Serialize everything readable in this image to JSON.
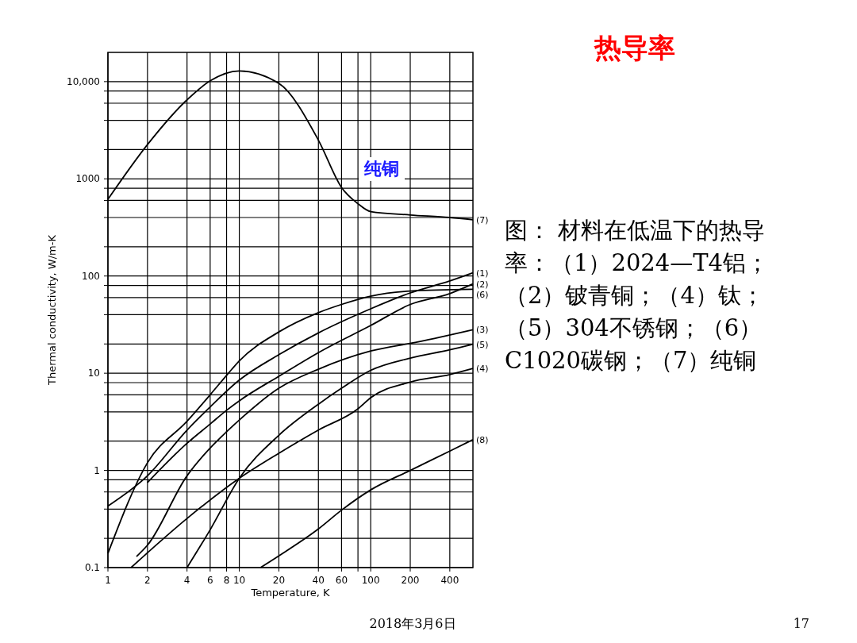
{
  "chart_data": {
    "type": "line",
    "title": "热导率",
    "xlabel": "Temperature, K",
    "ylabel": "Thermal conductivity, W/m-K",
    "log": "xy",
    "grid": true,
    "xlim": [
      1,
      600
    ],
    "ylim": [
      0.1,
      20000
    ],
    "xticks": [
      1,
      2,
      4,
      6,
      8,
      10,
      20,
      40,
      60,
      {
        "value": 80,
        "label": null
      },
      100,
      200,
      400
    ],
    "yticks": [
      0.1,
      {
        "value": 0.2,
        "label": null
      },
      {
        "value": 0.4,
        "label": null
      },
      {
        "value": 0.6,
        "label": null
      },
      {
        "value": 0.8,
        "label": null
      },
      1,
      {
        "value": 2,
        "label": null
      },
      {
        "value": 4,
        "label": null
      },
      {
        "value": 6,
        "label": null
      },
      {
        "value": 8,
        "label": null
      },
      10,
      {
        "value": 20,
        "label": null
      },
      {
        "value": 40,
        "label": null
      },
      {
        "value": 60,
        "label": null
      },
      {
        "value": 80,
        "label": null
      },
      100,
      {
        "value": 200,
        "label": null
      },
      {
        "value": 400,
        "label": null
      },
      {
        "value": 600,
        "label": null
      },
      {
        "value": 800,
        "label": null
      },
      1000,
      {
        "value": 2000,
        "label": null
      },
      {
        "value": 4000,
        "label": null
      },
      {
        "value": 6000,
        "label": null
      },
      {
        "value": 8000,
        "label": null
      },
      {
        "value": 10000,
        "label": "10,000"
      }
    ],
    "series": [
      {
        "name": "(7)",
        "color": "#000000",
        "x": [
          1,
          2,
          4,
          6,
          10,
          20,
          40,
          60,
          80,
          100,
          200,
          400,
          600
        ],
        "values": [
          615,
          2250,
          6500,
          10200,
          12900,
          9600,
          2500,
          815,
          555,
          460,
          425,
          400,
          380
        ]
      },
      {
        "name": "(1)",
        "color": "#000000",
        "x": [
          1,
          2,
          4,
          6,
          10,
          20,
          40,
          100,
          200,
          400,
          600
        ],
        "values": [
          0.43,
          0.88,
          2.6,
          4.5,
          8.5,
          15.5,
          26,
          46,
          67,
          89,
          108
        ]
      },
      {
        "name": "(6)",
        "color": "#000000",
        "x": [
          1,
          2,
          4,
          6,
          8,
          10,
          20,
          40,
          60,
          100,
          200,
          600
        ],
        "values": [
          0.14,
          1.2,
          3.2,
          6,
          9.5,
          13.4,
          26.6,
          42,
          51,
          62,
          70,
          73
        ]
      },
      {
        "name": "(2)",
        "color": "#000000",
        "x": [
          2,
          4,
          6,
          8,
          10,
          20,
          40,
          100,
          200,
          400,
          600
        ],
        "values": [
          0.75,
          1.9,
          3,
          4.15,
          5.2,
          9.3,
          16.3,
          31,
          51,
          66,
          83
        ]
      },
      {
        "name": "(3)",
        "color": "#000000",
        "x": [
          1.65,
          2,
          4,
          6,
          8,
          10,
          20,
          40,
          100,
          230,
          600
        ],
        "values": [
          0.13,
          0.17,
          0.88,
          1.7,
          2.5,
          3.3,
          7,
          11,
          16.9,
          21,
          28
        ]
      },
      {
        "name": "(5)",
        "color": "#000000",
        "x": [
          4,
          6,
          10,
          20,
          40,
          60,
          100,
          200,
          400,
          600
        ],
        "values": [
          0.1,
          0.245,
          0.83,
          2.3,
          4.8,
          7,
          10.7,
          14.3,
          17.4,
          19.9
        ]
      },
      {
        "name": "(4)",
        "color": "#000000",
        "x": [
          1.5,
          4,
          10,
          20,
          40,
          80,
          100,
          200,
          400,
          600
        ],
        "values": [
          0.1,
          0.32,
          0.83,
          1.5,
          2.6,
          4.3,
          5.6,
          8.1,
          9.7,
          11.2
        ]
      },
      {
        "name": "(8)",
        "color": "#000000",
        "x": [
          14.5,
          20,
          40,
          60,
          100,
          200,
          400,
          600
        ],
        "values": [
          0.1,
          0.132,
          0.25,
          0.39,
          0.63,
          1,
          1.58,
          2.07
        ]
      }
    ],
    "annotations": [
      "纯铜",
      "图： 材料在低温下的热导率：（1）2024—T4铝；（2）铍青铜；（4）钛；（5）304不锈钢；（6）C1020碳钢；（7）纯铜",
      "2018年3月6日",
      "17"
    ]
  }
}
